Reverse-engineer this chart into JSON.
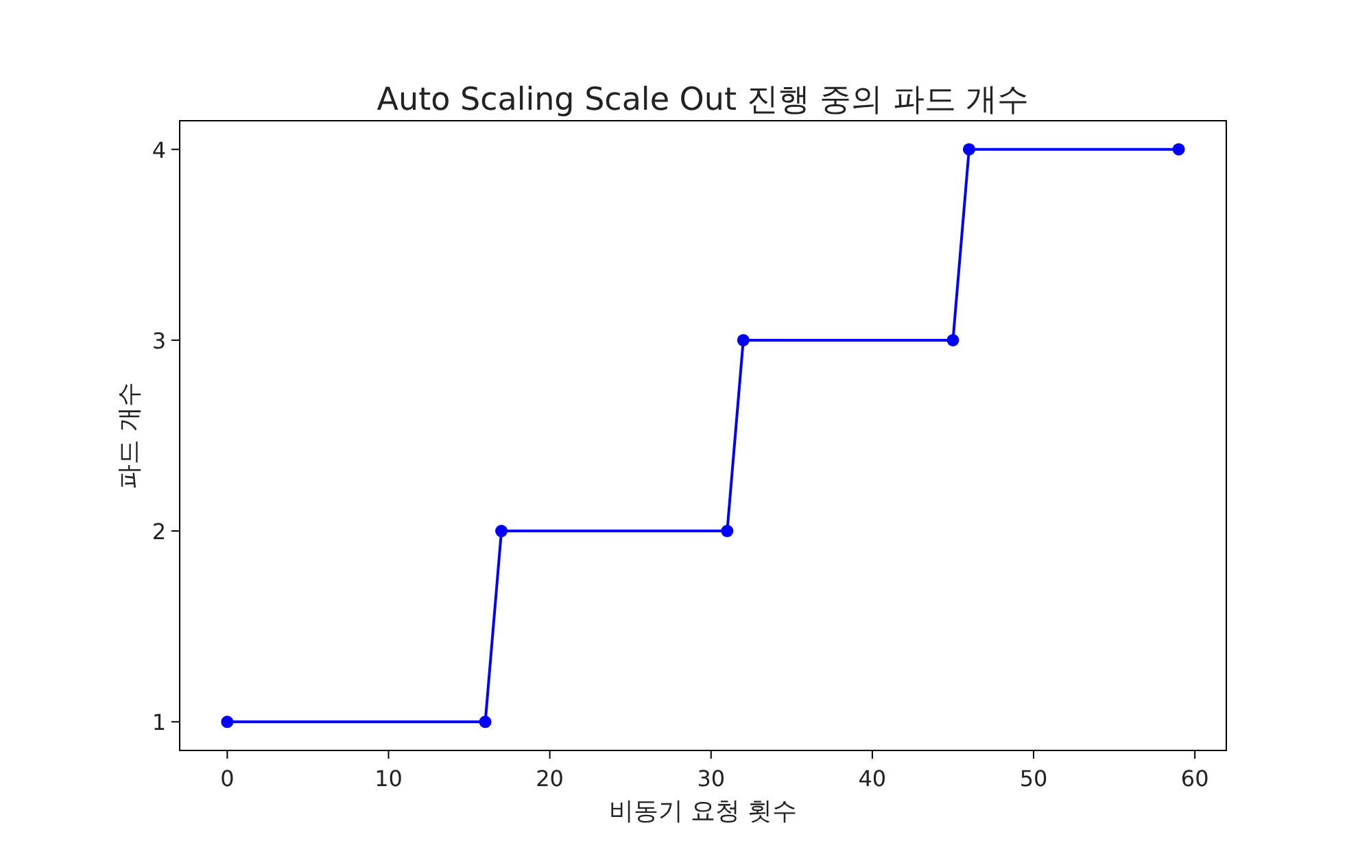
{
  "chart_data": {
    "type": "line",
    "title": "Auto Scaling Scale Out 진행 중의 파드 개수",
    "xlabel": "비동기 요청 횟수",
    "ylabel": "파드 개수",
    "x": [
      0,
      16,
      17,
      31,
      32,
      45,
      46,
      59
    ],
    "series": [
      {
        "color": "#0000ff",
        "values": [
          1,
          1,
          2,
          2,
          3,
          3,
          4,
          4
        ]
      }
    ],
    "xlim": [
      -2.95,
      61.95
    ],
    "ylim": [
      0.85,
      4.15
    ],
    "xticks": [
      0,
      10,
      20,
      30,
      40,
      50,
      60
    ],
    "yticks": [
      1,
      2,
      3,
      4
    ],
    "marker": "circle",
    "line_style": "solid"
  }
}
